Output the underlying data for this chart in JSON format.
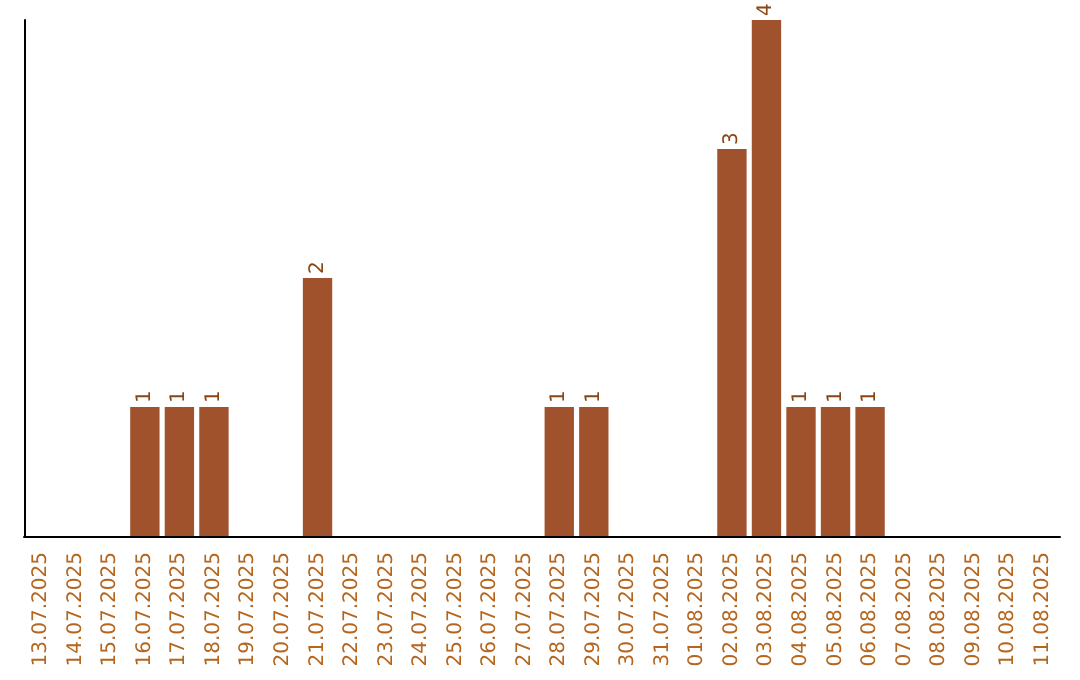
{
  "chart_data": {
    "type": "bar",
    "categories": [
      "13.07.2025",
      "14.07.2025",
      "15.07.2025",
      "16.07.2025",
      "17.07.2025",
      "18.07.2025",
      "19.07.2025",
      "20.07.2025",
      "21.07.2025",
      "22.07.2025",
      "23.07.2025",
      "24.07.2025",
      "25.07.2025",
      "26.07.2025",
      "27.07.2025",
      "28.07.2025",
      "29.07.2025",
      "30.07.2025",
      "31.07.2025",
      "01.08.2025",
      "02.08.2025",
      "03.08.2025",
      "04.08.2025",
      "05.08.2025",
      "06.08.2025",
      "07.08.2025",
      "08.08.2025",
      "09.08.2025",
      "10.08.2025",
      "11.08.2025"
    ],
    "values": [
      0,
      0,
      0,
      1,
      1,
      1,
      0,
      0,
      2,
      0,
      0,
      0,
      0,
      0,
      0,
      1,
      1,
      0,
      0,
      0,
      3,
      4,
      1,
      1,
      1,
      0,
      0,
      0,
      0,
      0
    ],
    "value_labels": [
      null,
      null,
      null,
      "1",
      "1",
      "1",
      null,
      null,
      "2",
      null,
      null,
      null,
      null,
      null,
      null,
      "1",
      "1",
      null,
      null,
      null,
      "3",
      "4",
      "1",
      "1",
      "1",
      null,
      null,
      null,
      null,
      null
    ],
    "color": "#a0522d",
    "tick_labels": "x"
  }
}
